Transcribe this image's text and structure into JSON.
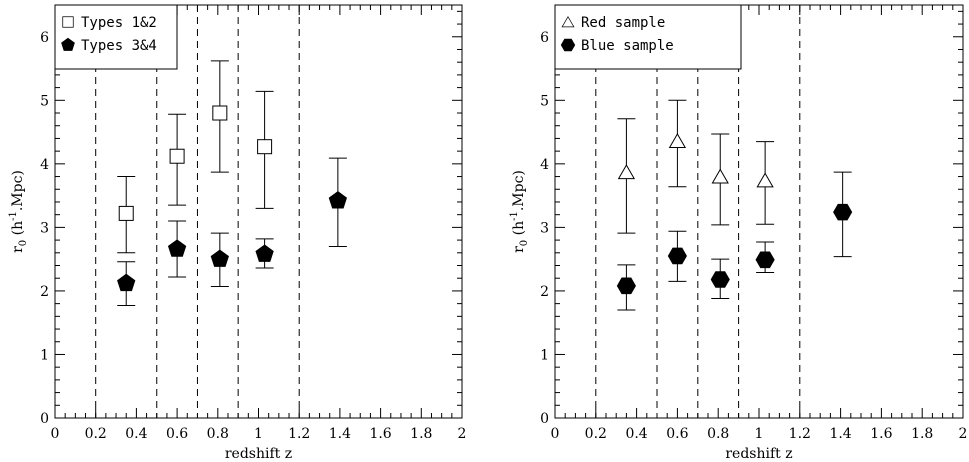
{
  "chart_data": [
    {
      "type": "scatter",
      "xlabel": "redshift z",
      "ylabel": "r",
      "ylabel_sub": "0",
      "ylabel_units": "(h",
      "ylabel_sup": "-1",
      "ylabel_tail": ".Mpc)",
      "xlim": [
        0,
        2
      ],
      "ylim": [
        0,
        6.5
      ],
      "xticks": [
        "0",
        "0.2",
        "0.4",
        "0.6",
        "0.8",
        "1",
        "1.2",
        "1.4",
        "1.6",
        "1.8",
        "2"
      ],
      "yticks": [
        "0",
        "1",
        "2",
        "3",
        "4",
        "5",
        "6"
      ],
      "dashed_lines_x": [
        0.2,
        0.5,
        0.7,
        0.9,
        1.2
      ],
      "legend_box": "top-left",
      "series": [
        {
          "name": "Types 1&2",
          "marker": "open-square",
          "points": [
            {
              "x": 0.35,
              "y": 3.22,
              "ylow": 2.6,
              "yhigh": 3.8
            },
            {
              "x": 0.6,
              "y": 4.12,
              "ylow": 3.35,
              "yhigh": 4.78
            },
            {
              "x": 0.81,
              "y": 4.8,
              "ylow": 3.87,
              "yhigh": 5.62
            },
            {
              "x": 1.03,
              "y": 4.27,
              "ylow": 3.3,
              "yhigh": 5.14
            }
          ]
        },
        {
          "name": "Types 3&4",
          "marker": "filled-pentagon",
          "points": [
            {
              "x": 0.35,
              "y": 2.12,
              "ylow": 1.77,
              "yhigh": 2.46
            },
            {
              "x": 0.6,
              "y": 2.66,
              "ylow": 2.22,
              "yhigh": 3.1
            },
            {
              "x": 0.81,
              "y": 2.5,
              "ylow": 2.07,
              "yhigh": 2.91
            },
            {
              "x": 1.03,
              "y": 2.58,
              "ylow": 2.36,
              "yhigh": 2.82
            },
            {
              "x": 1.39,
              "y": 3.42,
              "ylow": 2.7,
              "yhigh": 4.09
            }
          ]
        }
      ]
    },
    {
      "type": "scatter",
      "xlabel": "redshift z",
      "ylabel": "r",
      "ylabel_sub": "0",
      "ylabel_units": "(h",
      "ylabel_sup": "-1",
      "ylabel_tail": ".Mpc)",
      "xlim": [
        0,
        2
      ],
      "ylim": [
        0,
        6.5
      ],
      "xticks": [
        "0",
        "0.2",
        "0.4",
        "0.6",
        "0.8",
        "1",
        "1.2",
        "1.4",
        "1.6",
        "1.8",
        "2"
      ],
      "yticks": [
        "0",
        "1",
        "2",
        "3",
        "4",
        "5",
        "6"
      ],
      "dashed_lines_x": [
        0.2,
        0.5,
        0.7,
        0.9,
        1.2
      ],
      "legend_box": "top-left",
      "series": [
        {
          "name": "Red sample",
          "marker": "open-triangle",
          "points": [
            {
              "x": 0.35,
              "y": 3.87,
              "ylow": 2.91,
              "yhigh": 4.71
            },
            {
              "x": 0.6,
              "y": 4.36,
              "ylow": 3.64,
              "yhigh": 5.0
            },
            {
              "x": 0.81,
              "y": 3.8,
              "ylow": 3.04,
              "yhigh": 4.47
            },
            {
              "x": 1.03,
              "y": 3.74,
              "ylow": 3.05,
              "yhigh": 4.35
            }
          ]
        },
        {
          "name": "Blue sample",
          "marker": "filled-hexagon",
          "points": [
            {
              "x": 0.35,
              "y": 2.08,
              "ylow": 1.7,
              "yhigh": 2.41
            },
            {
              "x": 0.6,
              "y": 2.55,
              "ylow": 2.15,
              "yhigh": 2.94
            },
            {
              "x": 0.81,
              "y": 2.18,
              "ylow": 1.88,
              "yhigh": 2.5
            },
            {
              "x": 1.03,
              "y": 2.49,
              "ylow": 2.29,
              "yhigh": 2.77
            },
            {
              "x": 1.41,
              "y": 3.24,
              "ylow": 2.54,
              "yhigh": 3.87
            }
          ]
        }
      ]
    }
  ]
}
